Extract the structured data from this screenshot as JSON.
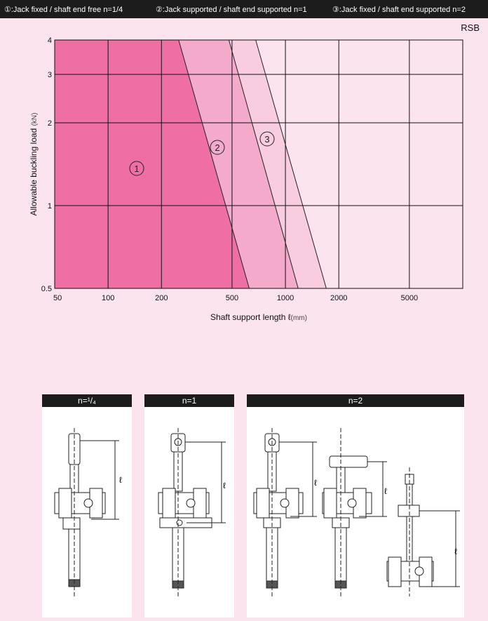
{
  "legend": [
    "①:Jack fixed / shaft end free   n=1/4",
    "②:Jack supported / shaft end supported   n=1",
    "③:Jack fixed / shaft end supported   n=2"
  ],
  "tag": "RSB",
  "colors": {
    "region1": "#ef6fa5",
    "region2": "#f4aacb",
    "region3": "#f9cde0",
    "bar": "#1c1c1c",
    "page": "#fbe4ee"
  },
  "chart_data": {
    "type": "area",
    "xscale": "log",
    "yscale": "log",
    "xlabel": "Shaft support length ℓ",
    "xunit": "(mm)",
    "ylabel": "Allowable buckling load",
    "yunit": "(kN)",
    "xlim": [
      50,
      10000
    ],
    "ylim": [
      0.5,
      4
    ],
    "xticks": [
      "50",
      "100",
      "200",
      "500",
      "1000",
      "2000",
      "5000"
    ],
    "yticks": [
      "4",
      "3",
      "2",
      "1",
      "0.5"
    ],
    "grid": true,
    "series": [
      {
        "name": "①",
        "points": [
          [
            250,
            4
          ],
          [
            625,
            0.5
          ]
        ]
      },
      {
        "name": "②",
        "points": [
          [
            480,
            4
          ],
          [
            1180,
            0.5
          ]
        ]
      },
      {
        "name": "③",
        "points": [
          [
            680,
            4
          ],
          [
            1700,
            0.5
          ]
        ]
      }
    ]
  },
  "diagrams": [
    {
      "title": "n=¹/₄",
      "length_symbol": "ℓ"
    },
    {
      "title": "n=1",
      "length_symbol": "ℓ"
    },
    {
      "title": "n=2",
      "length_symbol": "ℓ"
    }
  ]
}
